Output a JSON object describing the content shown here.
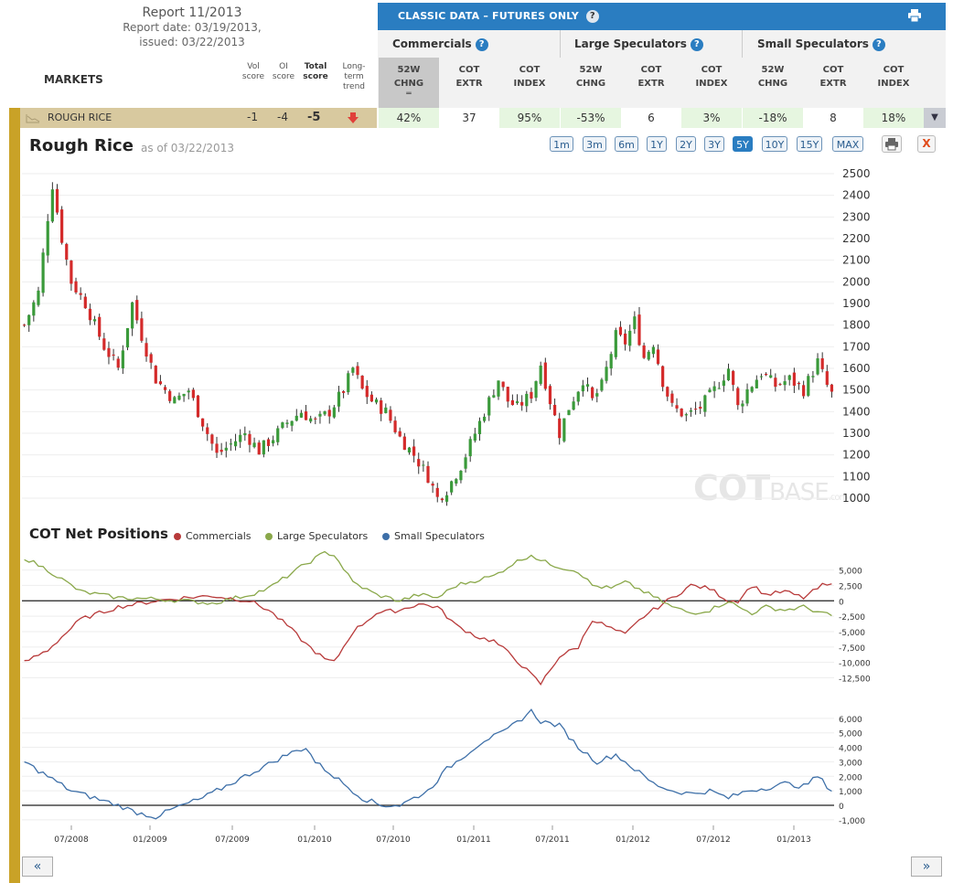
{
  "report": {
    "title": "Report 11/2013",
    "date_line": "Report date: 03/19/2013,",
    "issued_line": "issued: 03/22/2013"
  },
  "markets_label": "MARKETS",
  "score_headers": {
    "vol": [
      "Vol",
      "score"
    ],
    "oi": [
      "OI",
      "score"
    ],
    "total": [
      "Total",
      "score"
    ],
    "trend": [
      "Long-",
      "term",
      "trend"
    ]
  },
  "classic_title": "CLASSIC DATA – FUTURES ONLY",
  "help_glyph": "?",
  "groups": [
    "Commercials",
    "Large Speculators",
    "Small Speculators"
  ],
  "sub_headers": [
    [
      "52W",
      "CHNG"
    ],
    [
      "COT",
      "EXTR"
    ],
    [
      "COT",
      "INDEX"
    ],
    [
      "52W",
      "CHNG"
    ],
    [
      "COT",
      "EXTR"
    ],
    [
      "COT",
      "INDEX"
    ],
    [
      "52W",
      "CHNG"
    ],
    [
      "COT",
      "EXTR"
    ],
    [
      "COT",
      "INDEX"
    ]
  ],
  "sort_marker": "═",
  "market": {
    "name": "ROUGH RICE",
    "vol_score": "-1",
    "oi_score": "-4",
    "total_score": "-5",
    "trend_color": "#e0403a",
    "values": [
      "42%",
      "37",
      "95%",
      "-53%",
      "6",
      "3%",
      "-18%",
      "8",
      "18%"
    ]
  },
  "dropdown_glyph": "▼",
  "chart": {
    "title": "Rough Rice",
    "as_of": "as of 03/22/2013",
    "ranges": [
      "1m",
      "3m",
      "6m",
      "1Y",
      "2Y",
      "3Y",
      "5Y",
      "10Y",
      "15Y",
      "MAX"
    ],
    "active_range": "5Y",
    "close_glyph": "X"
  },
  "watermark": {
    "main": "COT",
    "base": "BASE",
    "dom": ".com"
  },
  "cot_title": "COT Net Positions",
  "nav": {
    "prev": "«",
    "next": "»"
  },
  "colors": {
    "up": "#3a9a3a",
    "down": "#d42a2a",
    "commercials": "#b83a3a",
    "large_spec": "#8aa84a",
    "small_spec": "#3d6fa8",
    "accent": "#2a7dc1",
    "stripe": "#c9a227"
  },
  "chart_data": [
    {
      "type": "candlestick",
      "title": "Rough Rice",
      "x_ticks": [
        "07/2008",
        "01/2009",
        "07/2009",
        "01/2010",
        "07/2010",
        "01/2011",
        "07/2011",
        "01/2012",
        "07/2012",
        "01/2013"
      ],
      "ylim": [
        950,
        2520
      ],
      "y_ticks": [
        1000,
        1100,
        1200,
        1300,
        1400,
        1500,
        1600,
        1700,
        1800,
        1900,
        2000,
        2100,
        2200,
        2300,
        2400,
        2500
      ],
      "grid": true,
      "close_anchors": [
        [
          0,
          1800
        ],
        [
          3,
          1950
        ],
        [
          5,
          2300
        ],
        [
          6,
          2450
        ],
        [
          8,
          2200
        ],
        [
          10,
          2000
        ],
        [
          13,
          1900
        ],
        [
          17,
          1700
        ],
        [
          20,
          1600
        ],
        [
          23,
          1900
        ],
        [
          25,
          1750
        ],
        [
          28,
          1550
        ],
        [
          32,
          1450
        ],
        [
          35,
          1500
        ],
        [
          38,
          1350
        ],
        [
          41,
          1200
        ],
        [
          44,
          1250
        ],
        [
          47,
          1300
        ],
        [
          50,
          1220
        ],
        [
          53,
          1280
        ],
        [
          56,
          1350
        ],
        [
          59,
          1400
        ],
        [
          62,
          1350
        ],
        [
          65,
          1400
        ],
        [
          68,
          1500
        ],
        [
          70,
          1600
        ],
        [
          72,
          1500
        ],
        [
          74,
          1450
        ],
        [
          77,
          1400
        ],
        [
          80,
          1280
        ],
        [
          83,
          1200
        ],
        [
          86,
          1100
        ],
        [
          88,
          1000
        ],
        [
          90,
          1040
        ],
        [
          93,
          1150
        ],
        [
          96,
          1300
        ],
        [
          99,
          1450
        ],
        [
          101,
          1550
        ],
        [
          103,
          1450
        ],
        [
          105,
          1420
        ],
        [
          108,
          1480
        ],
        [
          110,
          1620
        ],
        [
          112,
          1450
        ],
        [
          114,
          1300
        ],
        [
          116,
          1420
        ],
        [
          119,
          1550
        ],
        [
          121,
          1450
        ],
        [
          123,
          1520
        ],
        [
          126,
          1750
        ],
        [
          128,
          1720
        ],
        [
          130,
          1820
        ],
        [
          132,
          1650
        ],
        [
          134,
          1720
        ],
        [
          136,
          1540
        ],
        [
          138,
          1420
        ],
        [
          141,
          1380
        ],
        [
          144,
          1420
        ],
        [
          147,
          1500
        ],
        [
          150,
          1600
        ],
        [
          152,
          1420
        ],
        [
          154,
          1500
        ],
        [
          157,
          1580
        ],
        [
          160,
          1520
        ],
        [
          163,
          1550
        ],
        [
          166,
          1500
        ],
        [
          169,
          1630
        ],
        [
          171,
          1520
        ],
        [
          172,
          1480
        ]
      ]
    },
    {
      "type": "line",
      "title": "COT Net Positions",
      "series": [
        {
          "name": "Commercials",
          "anchors": [
            [
              0,
              -10000
            ],
            [
              5,
              -8000
            ],
            [
              12,
              -3000
            ],
            [
              20,
              -1000
            ],
            [
              28,
              0
            ],
            [
              34,
              500
            ],
            [
              40,
              800
            ],
            [
              48,
              0
            ],
            [
              52,
              -1500
            ],
            [
              56,
              -4000
            ],
            [
              60,
              -7000
            ],
            [
              64,
              -9500
            ],
            [
              66,
              -10000
            ],
            [
              70,
              -5000
            ],
            [
              75,
              -2000
            ],
            [
              80,
              -1500
            ],
            [
              84,
              -500
            ],
            [
              88,
              -1000
            ],
            [
              92,
              -4000
            ],
            [
              97,
              -6000
            ],
            [
              100,
              -6500
            ],
            [
              104,
              -9000
            ],
            [
              108,
              -12000
            ],
            [
              110,
              -13500
            ],
            [
              114,
              -9000
            ],
            [
              118,
              -7500
            ],
            [
              121,
              -3000
            ],
            [
              125,
              -4500
            ],
            [
              128,
              -5500
            ],
            [
              132,
              -2500
            ],
            [
              138,
              500
            ],
            [
              142,
              2500
            ],
            [
              146,
              2000
            ],
            [
              150,
              0
            ],
            [
              152,
              0
            ],
            [
              155,
              2500
            ],
            [
              158,
              1000
            ],
            [
              162,
              1500
            ],
            [
              166,
              500
            ],
            [
              170,
              2500
            ],
            [
              172,
              2500
            ]
          ]
        },
        {
          "name": "Large Speculators",
          "anchors": [
            [
              0,
              7000
            ],
            [
              5,
              5000
            ],
            [
              12,
              1500
            ],
            [
              20,
              500
            ],
            [
              28,
              300
            ],
            [
              34,
              0
            ],
            [
              40,
              -400
            ],
            [
              48,
              1000
            ],
            [
              52,
              2000
            ],
            [
              56,
              4000
            ],
            [
              60,
              6000
            ],
            [
              64,
              7800
            ],
            [
              66,
              7500
            ],
            [
              70,
              3000
            ],
            [
              75,
              1000
            ],
            [
              80,
              0
            ],
            [
              84,
              1000
            ],
            [
              88,
              500
            ],
            [
              92,
              2500
            ],
            [
              97,
              3500
            ],
            [
              100,
              4000
            ],
            [
              104,
              6000
            ],
            [
              108,
              7500
            ],
            [
              110,
              6500
            ],
            [
              114,
              5500
            ],
            [
              118,
              4800
            ],
            [
              121,
              2500
            ],
            [
              125,
              2000
            ],
            [
              128,
              3000
            ],
            [
              132,
              1500
            ],
            [
              138,
              -1000
            ],
            [
              142,
              -2000
            ],
            [
              146,
              -1500
            ],
            [
              150,
              0
            ],
            [
              152,
              -1000
            ],
            [
              155,
              -2000
            ],
            [
              158,
              -1000
            ],
            [
              162,
              -1500
            ],
            [
              166,
              -1000
            ],
            [
              170,
              -2000
            ],
            [
              172,
              -2500
            ]
          ]
        },
        {
          "name": "Small Speculators",
          "anchors": [
            [
              0,
              3000
            ],
            [
              5,
              2000
            ],
            [
              10,
              1000
            ],
            [
              15,
              500
            ],
            [
              20,
              0
            ],
            [
              24,
              -500
            ],
            [
              28,
              -800
            ],
            [
              32,
              -200
            ],
            [
              38,
              500
            ],
            [
              44,
              1500
            ],
            [
              50,
              2500
            ],
            [
              56,
              3500
            ],
            [
              60,
              4000
            ],
            [
              62,
              3000
            ],
            [
              68,
              1500
            ],
            [
              72,
              500
            ],
            [
              76,
              0
            ],
            [
              80,
              0
            ],
            [
              86,
              1000
            ],
            [
              90,
              2500
            ],
            [
              94,
              3500
            ],
            [
              98,
              4500
            ],
            [
              102,
              5000
            ],
            [
              106,
              6000
            ],
            [
              108,
              6500
            ],
            [
              110,
              5800
            ],
            [
              114,
              5500
            ],
            [
              118,
              4000
            ],
            [
              122,
              3000
            ],
            [
              126,
              3500
            ],
            [
              130,
              2500
            ],
            [
              134,
              1500
            ],
            [
              138,
              1000
            ],
            [
              142,
              800
            ],
            [
              146,
              1000
            ],
            [
              150,
              500
            ],
            [
              154,
              1000
            ],
            [
              158,
              1200
            ],
            [
              162,
              1500
            ],
            [
              166,
              1300
            ],
            [
              169,
              2000
            ],
            [
              172,
              1000
            ]
          ]
        }
      ],
      "ylim_top": [
        -14500,
        8500
      ],
      "y_ticks_top": [
        5000,
        2500,
        0,
        -2500,
        -5000,
        -7500,
        -10000,
        -12500
      ],
      "ylim_bottom": [
        -1200,
        7000
      ],
      "y_ticks_bottom": [
        6000,
        5000,
        4000,
        3000,
        2000,
        1000,
        0,
        -1000
      ]
    }
  ]
}
